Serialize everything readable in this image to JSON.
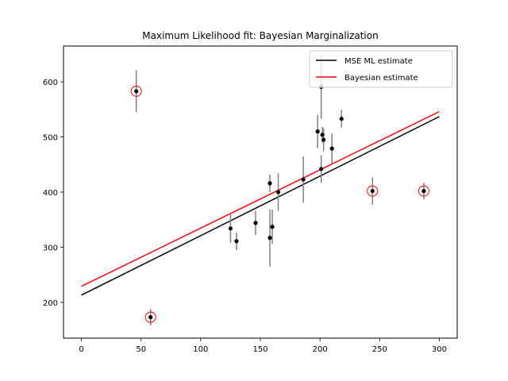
{
  "chart_data": {
    "type": "scatter",
    "title": "Maximum Likelihood fit: Bayesian Marginalization",
    "xlabel": "",
    "ylabel": "",
    "xlim": [
      -15,
      315
    ],
    "ylim": [
      135,
      665
    ],
    "x_ticks": [
      0,
      50,
      100,
      150,
      200,
      250,
      300
    ],
    "y_ticks": [
      200,
      300,
      400,
      500,
      600
    ],
    "grid": false,
    "legend_position": "top-right",
    "points": [
      {
        "x": 46,
        "y": 583,
        "err": 38,
        "outlier": true
      },
      {
        "x": 58,
        "y": 173,
        "err": 15,
        "outlier": true
      },
      {
        "x": 125,
        "y": 334,
        "err": 26,
        "outlier": false
      },
      {
        "x": 130,
        "y": 311,
        "err": 16,
        "outlier": false
      },
      {
        "x": 146,
        "y": 344,
        "err": 22,
        "outlier": false
      },
      {
        "x": 158,
        "y": 317,
        "err": 52,
        "outlier": false
      },
      {
        "x": 158,
        "y": 416,
        "err": 16,
        "outlier": false
      },
      {
        "x": 160,
        "y": 337,
        "err": 31,
        "outlier": false
      },
      {
        "x": 165,
        "y": 400,
        "err": 34,
        "outlier": false
      },
      {
        "x": 186,
        "y": 423,
        "err": 42,
        "outlier": false
      },
      {
        "x": 198,
        "y": 510,
        "err": 30,
        "outlier": false
      },
      {
        "x": 201,
        "y": 442,
        "err": 25,
        "outlier": false
      },
      {
        "x": 201,
        "y": 591,
        "err": 58,
        "outlier": false
      },
      {
        "x": 202,
        "y": 504,
        "err": 14,
        "outlier": false
      },
      {
        "x": 203,
        "y": 495,
        "err": 21,
        "outlier": false
      },
      {
        "x": 210,
        "y": 479,
        "err": 27,
        "outlier": false
      },
      {
        "x": 218,
        "y": 533,
        "err": 16,
        "outlier": false
      },
      {
        "x": 244,
        "y": 402,
        "err": 25,
        "outlier": true
      },
      {
        "x": 287,
        "y": 402,
        "err": 15,
        "outlier": true
      }
    ],
    "series": [
      {
        "name": "MSE ML estimate",
        "color": "#000000",
        "x": [
          0,
          300
        ],
        "y": [
          213,
          537
        ]
      },
      {
        "name": "Bayesian estimate",
        "color": "#ff0000",
        "x": [
          0,
          300
        ],
        "y": [
          229,
          546
        ]
      }
    ],
    "marker_color": "#000000",
    "errorbar_color": "#808080",
    "outlier_circle_color": "#ff0000"
  }
}
